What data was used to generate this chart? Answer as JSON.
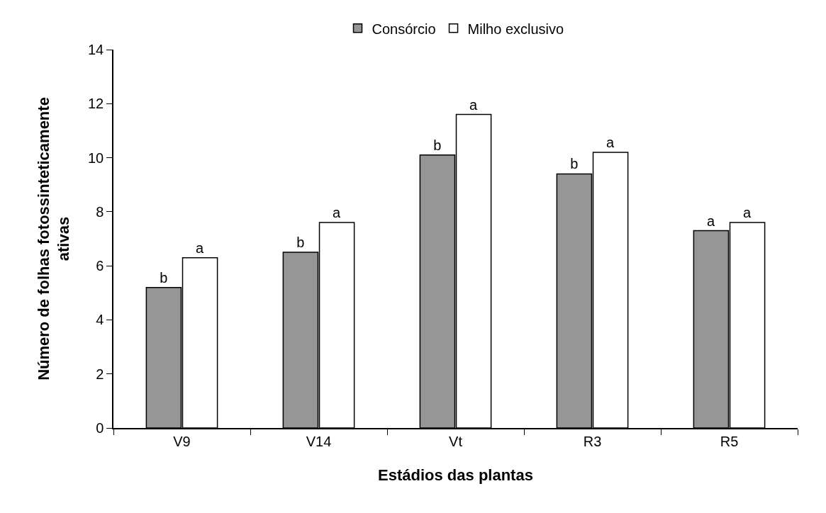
{
  "chart_data": {
    "type": "bar",
    "xlabel": "Estádios das plantas",
    "ylabel": "Número de folhas fotossinteticamente ativas",
    "categories": [
      "V9",
      "V14",
      "Vt",
      "R3",
      "R5"
    ],
    "series": [
      {
        "name": "Consórcio",
        "color": "#969696",
        "values": [
          5.2,
          6.5,
          10.1,
          9.4,
          7.3
        ],
        "value_labels": [
          "b",
          "b",
          "b",
          "b",
          "a"
        ]
      },
      {
        "name": "Milho exclusivo",
        "color": "#ffffff",
        "values": [
          6.3,
          7.6,
          11.6,
          10.2,
          7.6
        ],
        "value_labels": [
          "a",
          "a",
          "a",
          "a",
          "a"
        ]
      }
    ],
    "ylim": [
      0,
      14
    ],
    "yticks": [
      0,
      2,
      4,
      6,
      8,
      10,
      12,
      14
    ],
    "grid": false,
    "legend": "top"
  }
}
